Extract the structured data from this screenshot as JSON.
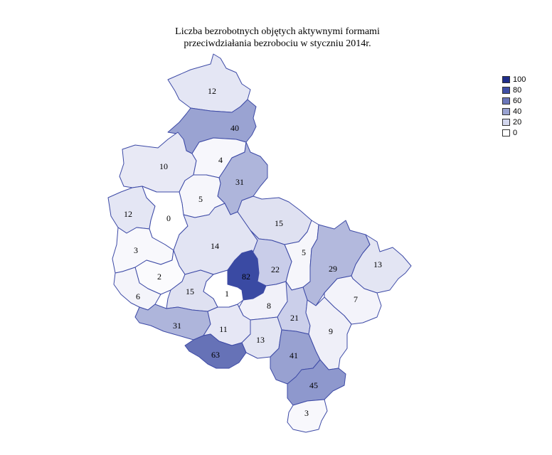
{
  "title": {
    "line1": "Liczba bezrobotnych objętych aktywnymi formami",
    "line2": "przeciwdziałania bezrobociu w styczniu 2014r."
  },
  "legend": [
    {
      "label": "100",
      "color": "#1f2d8a"
    },
    {
      "label": "80",
      "color": "#3f4fa6"
    },
    {
      "label": "60",
      "color": "#6b77bb"
    },
    {
      "label": "40",
      "color": "#9aa3d2"
    },
    {
      "label": "20",
      "color": "#d3d7ee"
    },
    {
      "label": "0",
      "color": "#ffffff"
    }
  ],
  "regions": [
    {
      "id": "r1",
      "value": "12",
      "color": "#e4e6f4"
    },
    {
      "id": "r2",
      "value": "40",
      "color": "#9aa3d2"
    },
    {
      "id": "r3",
      "value": "10",
      "color": "#e8e9f5"
    },
    {
      "id": "r4",
      "value": "4",
      "color": "#f7f7fc"
    },
    {
      "id": "r5",
      "value": "31",
      "color": "#aeb5db"
    },
    {
      "id": "r6",
      "value": "5",
      "color": "#f6f6fb"
    },
    {
      "id": "r7",
      "value": "12",
      "color": "#e4e6f4"
    },
    {
      "id": "r8",
      "value": "0",
      "color": "#ffffff"
    },
    {
      "id": "r9",
      "value": "15",
      "color": "#dfe1f1"
    },
    {
      "id": "r10",
      "value": "3",
      "color": "#f8f8fc"
    },
    {
      "id": "r11",
      "value": "14",
      "color": "#e2e4f3"
    },
    {
      "id": "r12",
      "value": "5",
      "color": "#f6f6fb"
    },
    {
      "id": "r13",
      "value": "29",
      "color": "#b3b9dd"
    },
    {
      "id": "r14",
      "value": "13",
      "color": "#e3e5f3"
    },
    {
      "id": "r15",
      "value": "2",
      "color": "#fbfbfd"
    },
    {
      "id": "r16",
      "value": "82",
      "color": "#3a4aa3"
    },
    {
      "id": "r17",
      "value": "22",
      "color": "#c9cde9"
    },
    {
      "id": "r18",
      "value": "6",
      "color": "#f4f4fa"
    },
    {
      "id": "r19",
      "value": "15",
      "color": "#dfe1f1"
    },
    {
      "id": "r20",
      "value": "1",
      "color": "#ffffff"
    },
    {
      "id": "r21",
      "value": "8",
      "color": "#f1f1f9"
    },
    {
      "id": "r22",
      "value": "7",
      "color": "#f3f3fa"
    },
    {
      "id": "r23",
      "value": "21",
      "color": "#cbcfea"
    },
    {
      "id": "r24",
      "value": "31",
      "color": "#aeb5db"
    },
    {
      "id": "r25",
      "value": "11",
      "color": "#e6e7f5"
    },
    {
      "id": "r26",
      "value": "13",
      "color": "#e3e5f3"
    },
    {
      "id": "r27",
      "value": "9",
      "color": "#efeff8"
    },
    {
      "id": "r28",
      "value": "63",
      "color": "#6672b7"
    },
    {
      "id": "r29",
      "value": "41",
      "color": "#98a1d1"
    },
    {
      "id": "r30",
      "value": "45",
      "color": "#8e98cd"
    },
    {
      "id": "r31",
      "value": "3",
      "color": "#f8f8fc"
    }
  ]
}
